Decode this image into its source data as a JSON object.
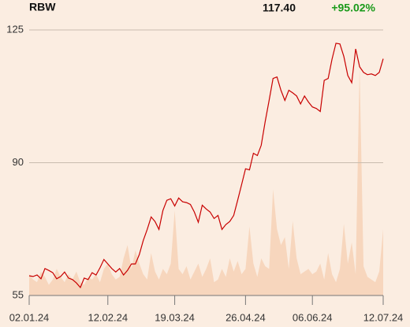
{
  "chart_data": {
    "type": "line",
    "header": {
      "ticker": "RBW",
      "price": "117.40",
      "change": "+95.02%"
    },
    "xlim": [
      0,
      90
    ],
    "xticks": [
      {
        "value": 0,
        "label": "02.01.24"
      },
      {
        "value": 20,
        "label": "12.02.24"
      },
      {
        "value": 37,
        "label": "19.03.24"
      },
      {
        "value": 55,
        "label": "26.04.24"
      },
      {
        "value": 72,
        "label": "06.06.24"
      },
      {
        "value": 90,
        "label": "12.07.24"
      }
    ],
    "ylim": [
      55,
      125
    ],
    "yticks": [
      55,
      90,
      125
    ],
    "grid": true,
    "y2lim": [
      0,
      100
    ],
    "change_color": "#1a9a1a",
    "series": [
      {
        "name": "RBW",
        "color": "#c80000",
        "values": [
          60.2,
          60.0,
          60.4,
          59.4,
          62.1,
          61.6,
          61.0,
          59.4,
          60.0,
          61.2,
          59.6,
          59.2,
          58.3,
          57.1,
          59.6,
          59.2,
          61.0,
          60.4,
          62.3,
          64.5,
          63.3,
          62.1,
          61.2,
          62.1,
          60.4,
          61.6,
          63.3,
          63.3,
          65.8,
          69.5,
          72.4,
          75.7,
          74.5,
          72.4,
          77.4,
          80.1,
          80.5,
          78.6,
          80.7,
          79.7,
          79.5,
          79.0,
          77.0,
          74.3,
          78.8,
          77.8,
          77.0,
          75.3,
          76.1,
          72.4,
          73.7,
          74.5,
          76.1,
          80.1,
          84.2,
          88.4,
          88.1,
          92.5,
          91.9,
          94.6,
          100.8,
          106.4,
          112.2,
          112.6,
          109.1,
          106.4,
          109.1,
          108.4,
          107.6,
          105.5,
          107.6,
          106.0,
          104.7,
          104.3,
          103.5,
          111.7,
          112.2,
          117.3,
          121.5,
          121.3,
          118.0,
          113.0,
          111.1,
          120.0,
          115.3,
          113.8,
          113.2,
          113.4,
          113.0,
          113.8,
          117.4
        ]
      },
      {
        "name": "Volume",
        "color": "#f7d6bd",
        "axis": "y2",
        "values": [
          8,
          6,
          5,
          9,
          7,
          4,
          6,
          10,
          7,
          5,
          8,
          6,
          9,
          5,
          4,
          7,
          6,
          8,
          5,
          10,
          12,
          8,
          6,
          7,
          14,
          19,
          10,
          17,
          12,
          8,
          6,
          16,
          9,
          6,
          10,
          8,
          12,
          32,
          10,
          8,
          11,
          6,
          9,
          12,
          7,
          10,
          14,
          5,
          6,
          10,
          7,
          14,
          9,
          13,
          8,
          10,
          26,
          12,
          7,
          14,
          11,
          10,
          40,
          25,
          19,
          22,
          10,
          28,
          14,
          8,
          9,
          10,
          8,
          9,
          12,
          6,
          16,
          8,
          5,
          10,
          27,
          12,
          20,
          8,
          86,
          11,
          7,
          6,
          5,
          9,
          25
        ]
      }
    ]
  }
}
